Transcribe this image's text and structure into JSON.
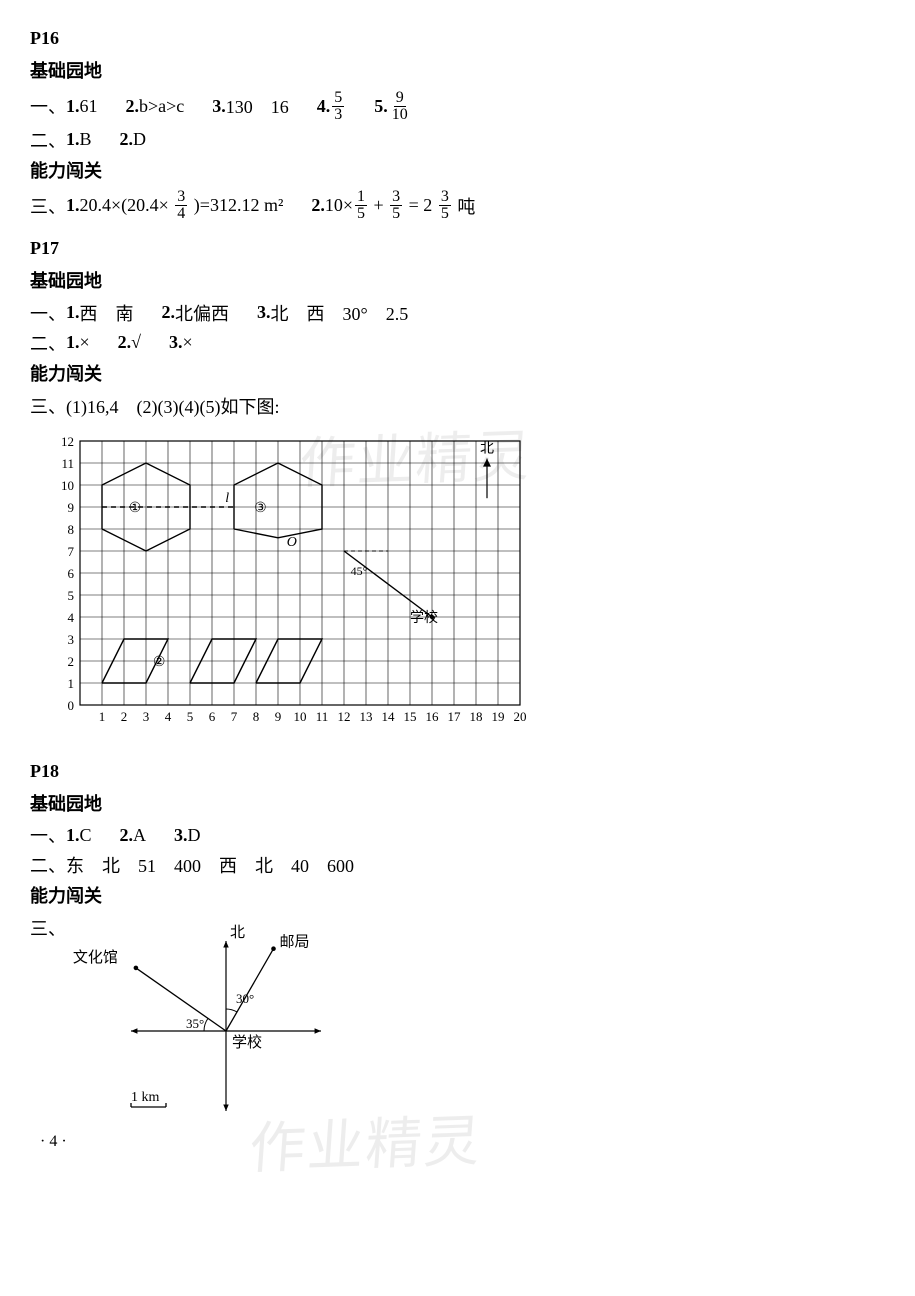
{
  "p16": {
    "header": "P16",
    "sub1": "基础园地",
    "l1_prefix": "一、",
    "q1_n": "1.",
    "q1_a": "61",
    "q2_n": "2.",
    "q2_a": "b>a>c",
    "q3_n": "3.",
    "q3_a": "130　16",
    "q4_n": "4.",
    "q4_frac_num": "5",
    "q4_frac_den": "3",
    "q5_n": "5.",
    "q5_frac_num": "9",
    "q5_frac_den": "10",
    "l2_prefix": "二、",
    "q21_n": "1.",
    "q21_a": "B",
    "q22_n": "2.",
    "q22_a": "D",
    "sub2": "能力闯关",
    "l3_prefix": "三、",
    "q31_n": "1.",
    "q31_text_a": "20.4×(20.4× ",
    "q31_frac_num": "3",
    "q31_frac_den": "4",
    "q31_text_b": " )=312.12 m²",
    "q32_n": "2.",
    "q32_text_a": "10×",
    "q32_f1_num": "1",
    "q32_f1_den": "5",
    "q32_text_b": " + ",
    "q32_f2_num": "3",
    "q32_f2_den": "5",
    "q32_text_c": " = 2 ",
    "q32_f3_num": "3",
    "q32_f3_den": "5",
    "q32_text_d": " 吨"
  },
  "p17": {
    "header": "P17",
    "sub1": "基础园地",
    "l1_prefix": "一、",
    "q1_n": "1.",
    "q1_a": "西　南",
    "q2_n": "2.",
    "q2_a": "北偏西",
    "q3_n": "3.",
    "q3_a": "北　西　30°　2.5",
    "l2_prefix": "二、",
    "q21_n": "1.",
    "q21_a": "×",
    "q22_n": "2.",
    "q22_a": "√",
    "q23_n": "3.",
    "q23_a": "×",
    "sub2": "能力闯关",
    "l3_prefix": "三、",
    "l3_text": "(1)16,4　(2)(3)(4)(5)如下图:",
    "grid": {
      "x_ticks": [
        "1",
        "2",
        "3",
        "4",
        "5",
        "6",
        "7",
        "8",
        "9",
        "10",
        "11",
        "12",
        "13",
        "14",
        "15",
        "16",
        "17",
        "18",
        "19",
        "20"
      ],
      "y_ticks": [
        "0",
        "1",
        "2",
        "3",
        "4",
        "5",
        "6",
        "7",
        "8",
        "9",
        "10",
        "11",
        "12"
      ],
      "label_l": "l",
      "label_O": "O",
      "label_45": "45°",
      "label_school": "学校",
      "label_north": "北",
      "circ1": "①",
      "circ2": "②",
      "circ3": "③",
      "shape1": [
        [
          1,
          8
        ],
        [
          1,
          10
        ],
        [
          3,
          11
        ],
        [
          5,
          10
        ],
        [
          5,
          8
        ],
        [
          3,
          7
        ],
        [
          1,
          8
        ]
      ],
      "shape3": [
        [
          7,
          8
        ],
        [
          7,
          10
        ],
        [
          9,
          11
        ],
        [
          11,
          10
        ],
        [
          11,
          8
        ],
        [
          9,
          7.6
        ],
        [
          7,
          8
        ]
      ],
      "shape2a": [
        [
          1,
          1
        ],
        [
          2,
          3
        ],
        [
          4,
          3
        ],
        [
          3,
          1
        ],
        [
          1,
          1
        ]
      ],
      "shape2b": [
        [
          5,
          1
        ],
        [
          6,
          3
        ],
        [
          8,
          3
        ],
        [
          7,
          1
        ],
        [
          5,
          1
        ]
      ],
      "shape2c": [
        [
          8,
          1
        ],
        [
          9,
          3
        ],
        [
          11,
          3
        ],
        [
          10,
          1
        ],
        [
          8,
          1
        ]
      ],
      "dashline": [
        [
          1,
          9
        ],
        [
          7,
          9
        ]
      ],
      "arrowline": [
        [
          12,
          7
        ],
        [
          16,
          4
        ]
      ],
      "north_arrow": [
        [
          18.5,
          11.2
        ],
        [
          18.5,
          9.4
        ]
      ],
      "line_color": "#000000",
      "grid_color": "#000000",
      "cell": 22
    }
  },
  "p18": {
    "header": "P18",
    "sub1": "基础园地",
    "l1_prefix": "一、",
    "q1_n": "1.",
    "q1_a": "C",
    "q2_n": "2.",
    "q2_a": "A",
    "q3_n": "3.",
    "q3_a": "D",
    "l2_prefix": "二、",
    "l2_text": "东　北　51　400　西　北　40　600",
    "sub2": "能力闯关",
    "l3_prefix": "三、",
    "diagram": {
      "north": "北",
      "post": "邮局",
      "culture": "文化馆",
      "school": "学校",
      "a30": "30°",
      "a35": "35°",
      "scale": "1 km",
      "color": "#000000"
    }
  },
  "foot": "· 4 ·",
  "watermark": "作业精灵"
}
